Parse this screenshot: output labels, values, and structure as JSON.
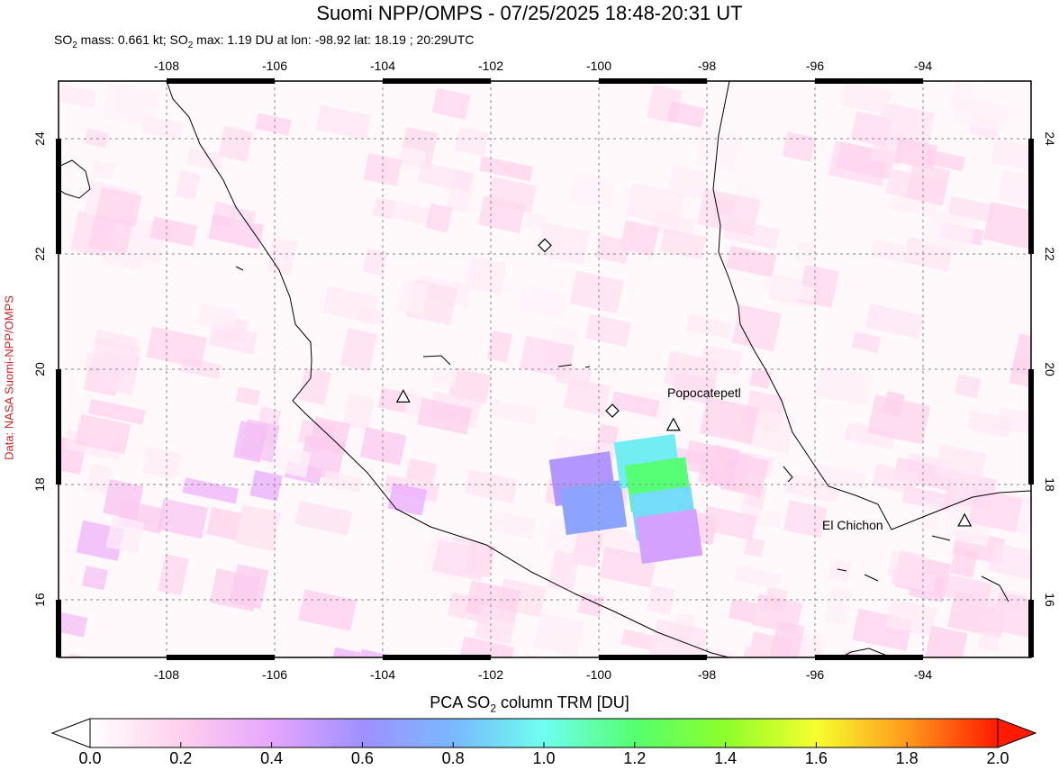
{
  "title": "Suomi NPP/OMPS - 07/25/2025 18:48-20:31 UT",
  "subtitle": {
    "mass_prefix": "SO",
    "mass_sub": "2",
    "mass_text": " mass: 0.661 kt; SO",
    "max_sub": "2",
    "max_text": " max: 1.19 DU at lon: -98.92 lat: 18.19 ; 20:29UTC"
  },
  "credit": "Data: NASA Suomi-NPP/OMPS",
  "map": {
    "lon_range": [
      -110,
      -92
    ],
    "lat_range": [
      15,
      25
    ],
    "lon_ticks": [
      -108,
      -106,
      -104,
      -102,
      -100,
      -98,
      -96,
      -94
    ],
    "lat_ticks": [
      16,
      18,
      20,
      22,
      24
    ],
    "lon_tick_labels": [
      "-108",
      "-106",
      "-104",
      "-102",
      "-100",
      "-98",
      "-96",
      "-94"
    ],
    "lat_tick_labels": [
      "16",
      "18",
      "20",
      "22",
      "24"
    ],
    "volcano_labels": {
      "popocatepetl": "Popocatepetl",
      "el_chichon": "El Chichon"
    },
    "volcanoes": [
      {
        "name": "Popocatepetl",
        "lon": -98.62,
        "lat": 19.02,
        "marker": "triangle"
      },
      {
        "name": "El Chichon",
        "lon": -93.23,
        "lat": 17.36,
        "marker": "triangle"
      },
      {
        "name": "",
        "lon": -103.62,
        "lat": 19.51,
        "marker": "triangle"
      },
      {
        "name": "",
        "lon": -99.75,
        "lat": 19.28,
        "marker": "diamond"
      },
      {
        "name": "",
        "lon": -101.0,
        "lat": 22.15,
        "marker": "diamond"
      }
    ],
    "so2_plume": [
      {
        "lon": -100.3,
        "lat": 18.1,
        "value": 0.55
      },
      {
        "lon": -100.1,
        "lat": 17.6,
        "value": 0.7
      },
      {
        "lon": -99.1,
        "lat": 18.4,
        "value": 0.95
      },
      {
        "lon": -98.9,
        "lat": 18.0,
        "value": 1.19
      },
      {
        "lon": -98.8,
        "lat": 17.5,
        "value": 0.9
      },
      {
        "lon": -98.7,
        "lat": 17.1,
        "value": 0.45
      }
    ]
  },
  "colorbar": {
    "title_prefix": "PCA SO",
    "title_sub": "2",
    "title_suffix": " column TRM [DU]",
    "min": 0.0,
    "max": 2.0,
    "tick_labels": [
      "0.0",
      "0.2",
      "0.4",
      "0.6",
      "0.8",
      "1.0",
      "1.2",
      "1.4",
      "1.6",
      "1.8",
      "2.0"
    ],
    "colors": [
      "#ffffff",
      "#ffd0ec",
      "#e6a6ff",
      "#9f90ff",
      "#7ab8ff",
      "#6ffff0",
      "#55ff70",
      "#8cff2a",
      "#f7ff30",
      "#ff9a1c",
      "#ff1a00"
    ]
  }
}
